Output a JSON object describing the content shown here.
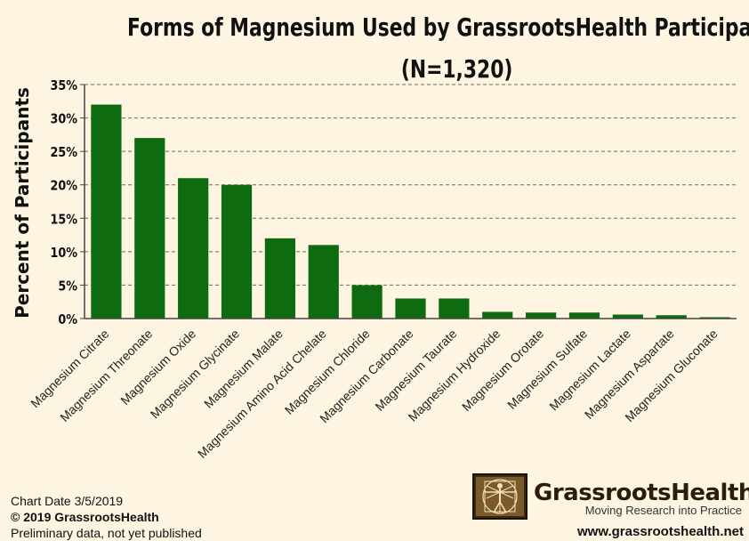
{
  "chart_data": {
    "type": "bar",
    "title": "Forms of Magnesium Used by GrassrootsHealth Participants",
    "subtitle": "(N=1,320)",
    "ylabel": "Percent of Participants",
    "xlabel": "",
    "ylim": [
      0,
      35
    ],
    "yticks": [
      "0%",
      "5%",
      "10%",
      "15%",
      "20%",
      "25%",
      "30%",
      "35%"
    ],
    "grid": true,
    "bar_color": "#0f6b0f",
    "categories": [
      "Magnesium Citrate",
      "Magnesium Threonate",
      "Magnesium Oxide",
      "Magnesium Glycinate",
      "Magnesium Malate",
      "Magnesium Amino Acid Chelate",
      "Magnesium Chloride",
      "Magnesium Carbonate",
      "Magnesium Taurate",
      "Magnesium Hydroxide",
      "Magnesium Orotate",
      "Magnesium Sulfate",
      "Magnesium Lactate",
      "Magnesium Aspartate",
      "Magnesium Gluconate"
    ],
    "values": [
      32,
      27,
      21,
      20,
      12,
      11,
      5,
      3,
      3,
      1,
      0.9,
      0.9,
      0.6,
      0.5,
      0.2
    ]
  },
  "footer": {
    "chart_date": "Chart Date 3/5/2019",
    "copyright": "© 2019 GrassrootsHealth",
    "note": "Preliminary data, not yet published"
  },
  "brand": {
    "name": "GrassrootsHealth",
    "tagline": "Moving Research into Practice",
    "url": "www.grassrootshealth.net",
    "logo_icon": "vitruvian-man-icon"
  },
  "colors": {
    "background": "#fdf5e1",
    "bar": "#0f6b0f",
    "grid": "#6b6b5a"
  }
}
